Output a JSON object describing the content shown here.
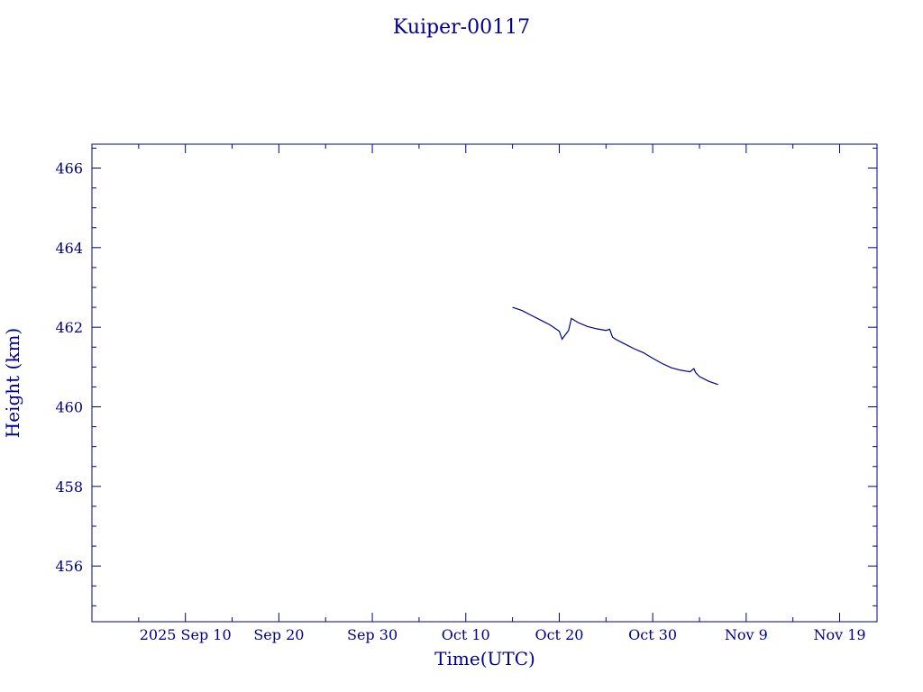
{
  "chart_data": {
    "type": "line",
    "title": "Kuiper-00117",
    "xlabel": "Time(UTC)",
    "ylabel": "Height (km)",
    "color": "#00008b",
    "x_tick_labels": [
      "2025 Sep 10",
      "Sep 20",
      "Sep 30",
      "Oct 10",
      "Oct 20",
      "Oct 30",
      "Nov  9",
      "Nov 19"
    ],
    "y_tick_labels": [
      "456",
      "458",
      "460",
      "462",
      "464",
      "466"
    ],
    "xlim": [
      "2025-08-31",
      "2025-11-23"
    ],
    "ylim": [
      454.6,
      466.6
    ],
    "grid": false,
    "series": [
      {
        "x": [
          "2025-10-15",
          "2025-10-16",
          "2025-10-17",
          "2025-10-18",
          "2025-10-19",
          "2025-10-20",
          "2025-10-20.3",
          "2025-10-21",
          "2025-10-21.3",
          "2025-10-22",
          "2025-10-23",
          "2025-10-24",
          "2025-10-25",
          "2025-10-25.4",
          "2025-10-25.7",
          "2025-10-26",
          "2025-10-27",
          "2025-10-28",
          "2025-10-29",
          "2025-10-30",
          "2025-10-31",
          "2025-11-01",
          "2025-11-02",
          "2025-11-03",
          "2025-11-03.4",
          "2025-11-03.6",
          "2025-11-04",
          "2025-11-05",
          "2025-11-06"
        ],
        "y": [
          462.5,
          462.42,
          462.3,
          462.18,
          462.06,
          461.9,
          461.7,
          461.92,
          462.22,
          462.12,
          462.02,
          461.96,
          461.92,
          461.95,
          461.75,
          461.7,
          461.58,
          461.46,
          461.36,
          461.22,
          461.09,
          460.98,
          460.92,
          460.88,
          460.96,
          460.86,
          460.76,
          460.64,
          460.56
        ]
      }
    ]
  }
}
